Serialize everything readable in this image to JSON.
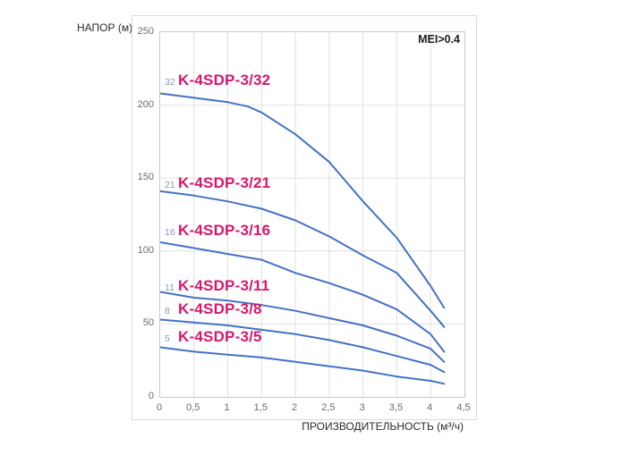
{
  "chart_data": {
    "type": "line",
    "title": "",
    "ylabel": "НАПОР (м)",
    "xlabel": "ПРОИЗВОДИТЕЛЬНОСТЬ (м³/ч)",
    "annotation": "MEI>0.4",
    "xlim": [
      0,
      4.5
    ],
    "ylim": [
      0,
      250
    ],
    "grid": true,
    "legend_position": "inline-curve-labels",
    "colors": {
      "curve": "#4472C4",
      "curve_label": "#d6186c",
      "stage_number": "#7f9db9",
      "gridline": "#e0e0e0",
      "tick_text": "#6a6a6a"
    },
    "x_ticks": [
      {
        "value": 0,
        "label": "0"
      },
      {
        "value": 0.5,
        "label": "0,5"
      },
      {
        "value": 1,
        "label": "1"
      },
      {
        "value": 1.5,
        "label": "1,5"
      },
      {
        "value": 2,
        "label": "2"
      },
      {
        "value": 2.5,
        "label": "2,5"
      },
      {
        "value": 3,
        "label": "3"
      },
      {
        "value": 3.5,
        "label": "3,5"
      },
      {
        "value": 4,
        "label": "4"
      },
      {
        "value": 4.5,
        "label": "4,5"
      }
    ],
    "y_ticks": [
      {
        "value": 0,
        "label": "0"
      },
      {
        "value": 50,
        "label": "50"
      },
      {
        "value": 100,
        "label": "100"
      },
      {
        "value": 150,
        "label": "150"
      },
      {
        "value": 200,
        "label": "200"
      },
      {
        "value": 250,
        "label": "250"
      }
    ],
    "series": [
      {
        "name": "K-4SDP-3/32",
        "stage": "32",
        "label_at": {
          "x": 0.08,
          "y": 216
        },
        "points": [
          [
            0,
            208
          ],
          [
            0.5,
            205
          ],
          [
            1,
            202
          ],
          [
            1.3,
            199
          ],
          [
            1.5,
            195
          ],
          [
            2,
            180
          ],
          [
            2.5,
            161
          ],
          [
            3,
            134
          ],
          [
            3.5,
            109
          ],
          [
            4,
            76
          ],
          [
            4.2,
            61
          ]
        ]
      },
      {
        "name": "K-4SDP-3/21",
        "stage": "21",
        "label_at": {
          "x": 0.08,
          "y": 146
        },
        "points": [
          [
            0,
            141
          ],
          [
            0.5,
            138
          ],
          [
            1,
            134
          ],
          [
            1.5,
            129
          ],
          [
            2,
            121
          ],
          [
            2.5,
            110
          ],
          [
            3,
            97
          ],
          [
            3.5,
            85
          ],
          [
            4,
            59
          ],
          [
            4.2,
            48
          ]
        ]
      },
      {
        "name": "K-4SDP-3/16",
        "stage": "16",
        "label_at": {
          "x": 0.08,
          "y": 113.5
        },
        "points": [
          [
            0,
            106
          ],
          [
            0.5,
            102
          ],
          [
            1,
            98
          ],
          [
            1.5,
            94
          ],
          [
            2,
            85
          ],
          [
            2.5,
            78
          ],
          [
            3,
            70
          ],
          [
            3.5,
            60
          ],
          [
            4,
            43
          ],
          [
            4.2,
            31
          ]
        ]
      },
      {
        "name": "K-4SDP-3/11",
        "stage": "11",
        "label_at": {
          "x": 0.08,
          "y": 75.5
        },
        "points": [
          [
            0,
            72
          ],
          [
            0.5,
            68
          ],
          [
            1,
            66
          ],
          [
            1.5,
            63
          ],
          [
            2,
            59
          ],
          [
            2.5,
            54
          ],
          [
            3,
            49
          ],
          [
            3.5,
            42
          ],
          [
            4,
            33
          ],
          [
            4.2,
            24
          ]
        ]
      },
      {
        "name": "K-4SDP-3/8",
        "stage": "8",
        "label_at": {
          "x": 0.08,
          "y": 59.5
        },
        "points": [
          [
            0,
            53
          ],
          [
            0.5,
            51
          ],
          [
            1,
            49
          ],
          [
            1.5,
            46
          ],
          [
            2,
            43
          ],
          [
            2.5,
            39
          ],
          [
            3,
            34
          ],
          [
            3.5,
            28
          ],
          [
            4,
            22
          ],
          [
            4.2,
            17
          ]
        ]
      },
      {
        "name": "K-4SDP-3/5",
        "stage": "5",
        "label_at": {
          "x": 0.08,
          "y": 40.5
        },
        "points": [
          [
            0,
            34
          ],
          [
            0.5,
            31
          ],
          [
            1,
            29
          ],
          [
            1.5,
            27
          ],
          [
            2,
            24
          ],
          [
            2.5,
            21
          ],
          [
            3,
            18
          ],
          [
            3.5,
            14
          ],
          [
            4,
            11
          ],
          [
            4.2,
            9
          ]
        ]
      }
    ]
  }
}
